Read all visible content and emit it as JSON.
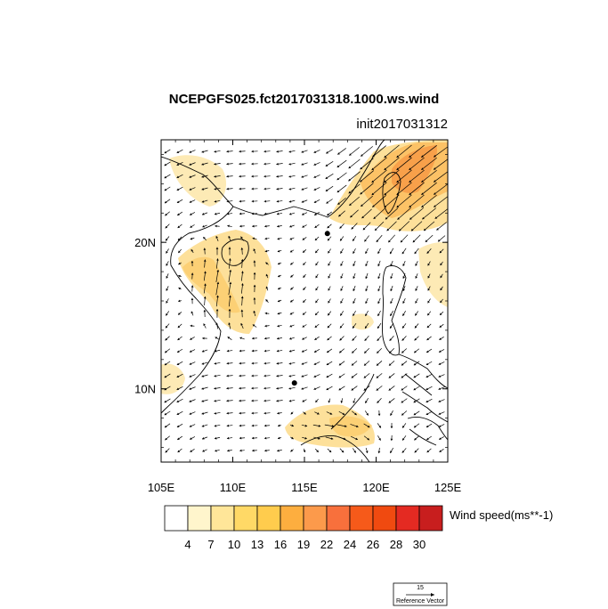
{
  "title": "NCEPGFS025.fct2017031318.1000.ws.wind",
  "subtitle": "init2017031312",
  "map": {
    "lon_range": [
      105,
      125
    ],
    "lat_range": [
      5,
      27
    ],
    "x_ticks": [
      {
        "value": 105,
        "label": "105E"
      },
      {
        "value": 110,
        "label": "110E"
      },
      {
        "value": 115,
        "label": "115E"
      },
      {
        "value": 120,
        "label": "120E"
      },
      {
        "value": 125,
        "label": "125E"
      }
    ],
    "y_ticks": [
      {
        "value": 10,
        "label": "10N"
      },
      {
        "value": 20,
        "label": "20N"
      }
    ],
    "markers": [
      {
        "lon": 116.6,
        "lat": 20.6
      },
      {
        "lon": 114.3,
        "lat": 10.4
      }
    ]
  },
  "colorbar": {
    "title": "Wind speed(ms**-1)",
    "colors": [
      "#ffffff",
      "#fff5cc",
      "#ffe699",
      "#ffd966",
      "#ffcc4d",
      "#fdae3f",
      "#fc9a4b",
      "#f8703c",
      "#f65a1a",
      "#f04a10",
      "#e42a22",
      "#c81e1e"
    ],
    "labels": [
      "4",
      "7",
      "10",
      "13",
      "16",
      "19",
      "22",
      "24",
      "26",
      "28",
      "30"
    ]
  },
  "reference_vector": {
    "magnitude_label": "15",
    "caption": "Reference Vector"
  }
}
